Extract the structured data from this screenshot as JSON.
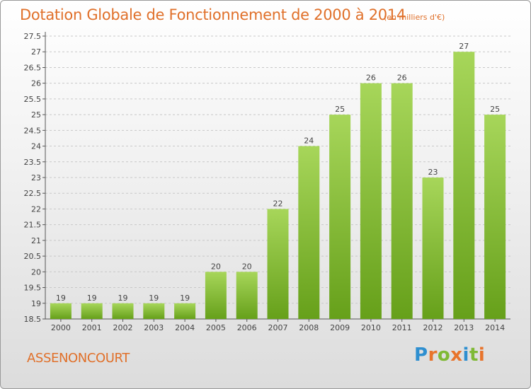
{
  "title": "Dotation Globale de Fonctionnement de 2000 à 2014",
  "subtitle": "(en milliers d'€)",
  "commune": "ASSENONCOURT",
  "logo": {
    "text": "Proxiti",
    "letters": [
      {
        "ch": "P",
        "color": "#2e8fd0"
      },
      {
        "ch": "r",
        "color": "#e8742c"
      },
      {
        "ch": "o",
        "color": "#7fb935"
      },
      {
        "ch": "x",
        "color": "#e8742c"
      },
      {
        "ch": "i",
        "color": "#2e8fd0"
      },
      {
        "ch": "t",
        "color": "#7fb935"
      },
      {
        "ch": "i",
        "color": "#e8742c"
      }
    ]
  },
  "colors": {
    "bar_light": "#a7d65a",
    "bar_dark": "#66a01a",
    "accent": "#e0702a",
    "grid": "#c8c8c8"
  },
  "chart_data": {
    "type": "bar",
    "categories": [
      "2000",
      "2001",
      "2002",
      "2003",
      "2004",
      "2005",
      "2006",
      "2007",
      "2008",
      "2009",
      "2010",
      "2011",
      "2012",
      "2013",
      "2014"
    ],
    "values": [
      19,
      19,
      19,
      19,
      19,
      20,
      20,
      22,
      24,
      25,
      26,
      26,
      23,
      27,
      25
    ],
    "data_labels": [
      "19",
      "19",
      "19",
      "19",
      "19",
      "20",
      "20",
      "22",
      "24",
      "25",
      "26",
      "26",
      "23",
      "27",
      "25"
    ],
    "yticks": [
      "18.5",
      "19",
      "19.5",
      "20",
      "20.5",
      "21",
      "21.5",
      "22",
      "22.5",
      "23",
      "23.5",
      "24",
      "24.5",
      "25",
      "25.5",
      "26",
      "26.5",
      "27",
      "27.5"
    ],
    "ylim": [
      18.5,
      27.5
    ],
    "grid": true,
    "legend": "none"
  }
}
